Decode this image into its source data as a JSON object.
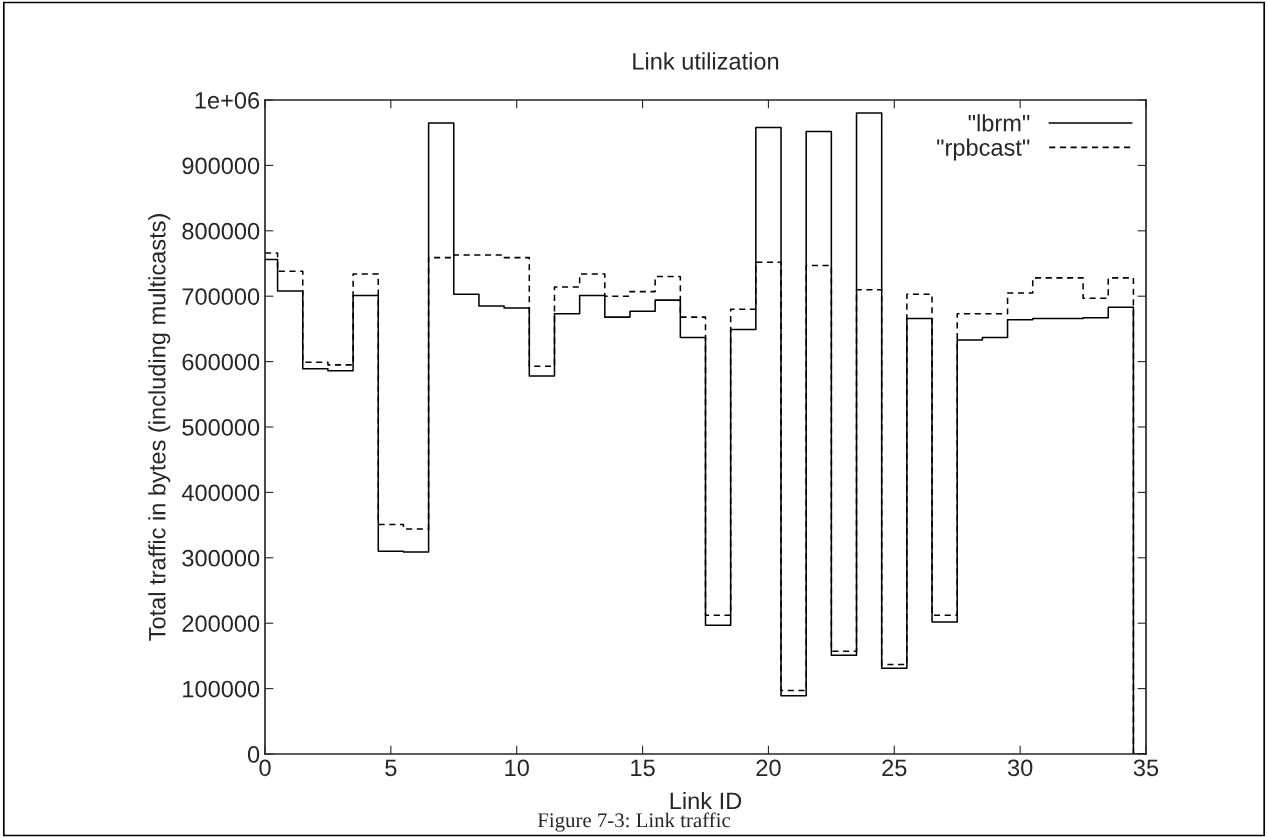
{
  "chart_data": {
    "type": "step",
    "title": "Link utilization",
    "xlabel": "Link ID",
    "ylabel": "Total traffic in bytes (including multicasts)",
    "annotations": [
      "Figure 7-3: Link traffic"
    ],
    "x": [
      0,
      1,
      2,
      3,
      4,
      5,
      6,
      7,
      8,
      9,
      10,
      11,
      12,
      13,
      14,
      15,
      16,
      17,
      18,
      19,
      20,
      21,
      22,
      23,
      24,
      25,
      26,
      27,
      28,
      29,
      30,
      31,
      32,
      33,
      34,
      35
    ],
    "series": [
      {
        "name": "\"lbrm\"",
        "color": "#000000",
        "line_style": "solid",
        "values": [
          756000,
          708000,
          589000,
          586000,
          701000,
          310000,
          309000,
          965000,
          703000,
          685000,
          682000,
          578000,
          673000,
          701000,
          668000,
          677000,
          694000,
          637000,
          197000,
          649000,
          958000,
          89000,
          952000,
          151000,
          980000,
          131000,
          666000,
          202000,
          633000,
          637000,
          664000,
          666000,
          666000,
          667000,
          683000,
          0
        ]
      },
      {
        "name": "\"rpbcast\"",
        "color": "#000000",
        "line_style": "dashed",
        "values": [
          766000,
          738000,
          599000,
          595000,
          734000,
          351000,
          344000,
          759000,
          763000,
          763000,
          759000,
          593000,
          714000,
          734000,
          700000,
          707000,
          730000,
          668000,
          212000,
          680000,
          752000,
          97000,
          747000,
          157000,
          710000,
          137000,
          703000,
          212000,
          673000,
          673000,
          705000,
          728000,
          728000,
          697000,
          728000,
          0
        ]
      }
    ],
    "xlim": [
      0,
      35
    ],
    "xticks": [
      0,
      5,
      10,
      15,
      20,
      25,
      30,
      35
    ],
    "ylim": [
      0,
      1000000
    ],
    "yticks": [
      0,
      100000,
      200000,
      300000,
      400000,
      500000,
      600000,
      700000,
      800000,
      900000,
      {
        "value": 1000000,
        "label": "1e+06"
      }
    ],
    "grid": false,
    "legend": "top right"
  }
}
